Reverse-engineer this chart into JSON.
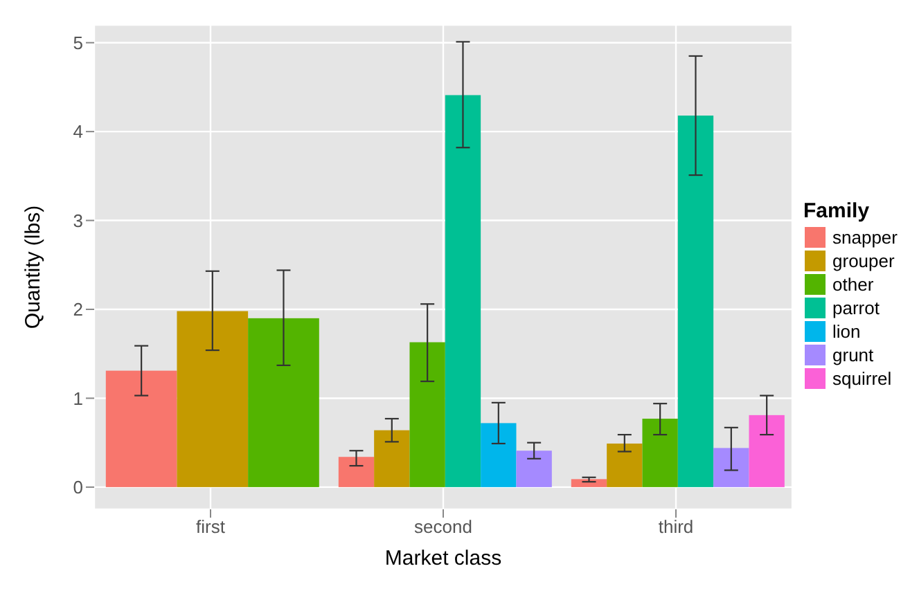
{
  "chart_data": {
    "type": "bar",
    "xlabel": "Market class",
    "ylabel": "Quantity (lbs)",
    "legend_title": "Family",
    "categories": [
      "first",
      "second",
      "third"
    ],
    "series": [
      {
        "name": "snapper",
        "color": "#f8766d",
        "values": [
          1.31,
          0.34,
          0.09
        ],
        "errors": [
          [
            1.03,
            1.59
          ],
          [
            0.24,
            0.41
          ],
          [
            0.06,
            0.11
          ]
        ]
      },
      {
        "name": "grouper",
        "color": "#c49a00",
        "values": [
          1.98,
          0.64,
          0.49
        ],
        "errors": [
          [
            1.54,
            2.43
          ],
          [
            0.51,
            0.77
          ],
          [
            0.4,
            0.59
          ]
        ]
      },
      {
        "name": "other",
        "color": "#53b400",
        "values": [
          1.9,
          1.63,
          0.77
        ],
        "errors": [
          [
            1.37,
            2.44
          ],
          [
            1.19,
            2.06
          ],
          [
            0.59,
            0.94
          ]
        ]
      },
      {
        "name": "parrot",
        "color": "#00c094",
        "values": [
          null,
          4.41,
          4.18
        ],
        "errors": [
          null,
          [
            3.82,
            5.01
          ],
          [
            3.51,
            4.85
          ]
        ]
      },
      {
        "name": "lion",
        "color": "#00b6eb",
        "values": [
          null,
          0.72,
          null
        ],
        "errors": [
          null,
          [
            0.49,
            0.95
          ],
          null
        ]
      },
      {
        "name": "grunt",
        "color": "#a58aff",
        "values": [
          null,
          0.41,
          0.44
        ],
        "errors": [
          null,
          [
            0.32,
            0.5
          ],
          [
            0.19,
            0.67
          ]
        ]
      },
      {
        "name": "squirrel",
        "color": "#fb61d7",
        "values": [
          null,
          null,
          0.81
        ],
        "errors": [
          null,
          null,
          [
            0.59,
            1.03
          ]
        ]
      }
    ],
    "ylim": [
      -0.25,
      5.2
    ],
    "yticks": [
      0,
      1,
      2,
      3,
      4,
      5
    ],
    "grid": true,
    "legend": "right"
  }
}
